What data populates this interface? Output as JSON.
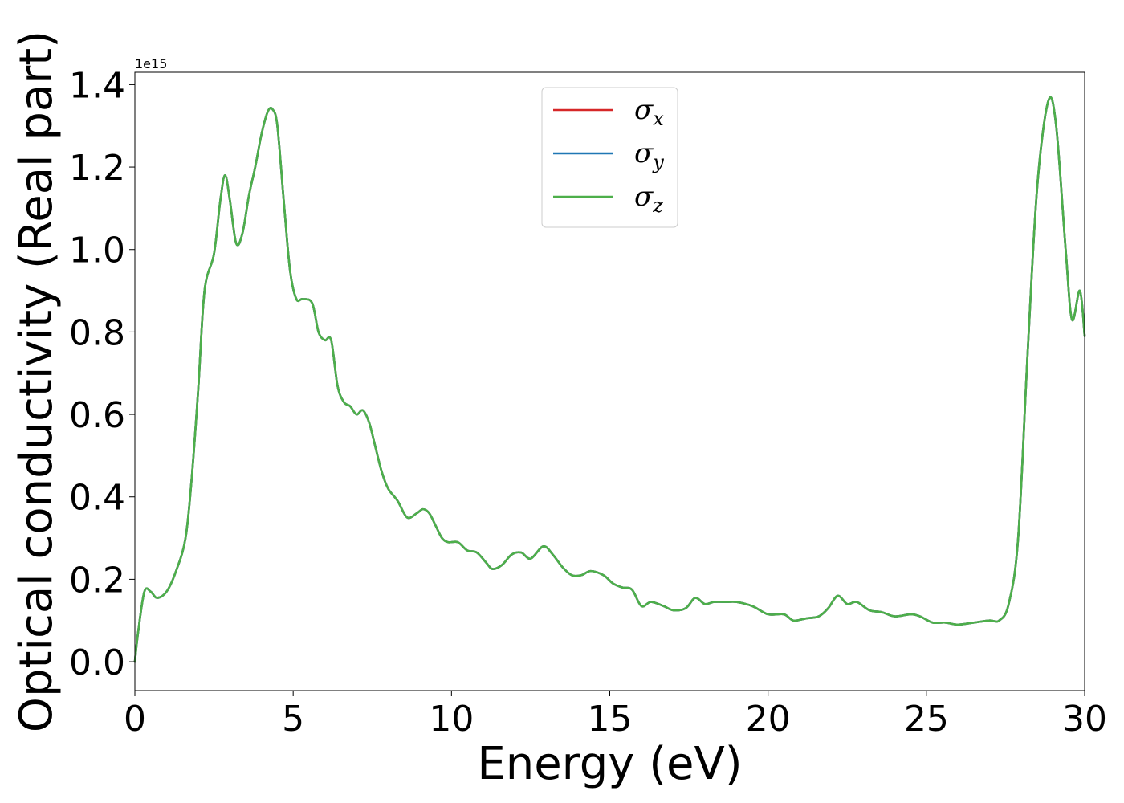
{
  "chart_data": {
    "type": "line",
    "xlabel": "Energy (eV)",
    "ylabel": "Optical conductivity (Real part)",
    "y_offset_label": "1e15",
    "xlim": [
      0,
      30
    ],
    "ylim": [
      -0.07,
      1.43
    ],
    "x_ticks": [
      0,
      5,
      10,
      15,
      20,
      25,
      30
    ],
    "x_tick_labels": [
      "0",
      "5",
      "10",
      "15",
      "20",
      "25",
      "30"
    ],
    "y_ticks": [
      0.0,
      0.2,
      0.4,
      0.6,
      0.8,
      1.0,
      1.2,
      1.4
    ],
    "y_tick_labels": [
      "0.0",
      "0.2",
      "0.4",
      "0.6",
      "0.8",
      "1.0",
      "1.2",
      "1.4"
    ],
    "grid": false,
    "legend_position": "upper center",
    "series": [
      {
        "name": "σx",
        "symbol": "σ",
        "subscript": "x",
        "color": "#d62728",
        "x": [
          0.0,
          0.1,
          0.3,
          0.5,
          0.7,
          1.0,
          1.3,
          1.6,
          1.8,
          2.0,
          2.2,
          2.5,
          2.7,
          2.85,
          3.0,
          3.2,
          3.4,
          3.6,
          3.8,
          4.0,
          4.2,
          4.35,
          4.5,
          4.7,
          4.9,
          5.1,
          5.3,
          5.6,
          5.8,
          6.0,
          6.2,
          6.4,
          6.6,
          6.8,
          7.0,
          7.2,
          7.4,
          7.6,
          7.8,
          8.0,
          8.3,
          8.6,
          8.9,
          9.1,
          9.3,
          9.5,
          9.7,
          9.9,
          10.2,
          10.5,
          10.8,
          11.1,
          11.3,
          11.6,
          11.9,
          12.2,
          12.5,
          12.9,
          13.2,
          13.5,
          13.8,
          14.1,
          14.4,
          14.8,
          15.1,
          15.4,
          15.7,
          16.0,
          16.3,
          16.7,
          17.0,
          17.4,
          17.7,
          18.0,
          18.3,
          18.7,
          19.0,
          19.5,
          20.0,
          20.5,
          20.8,
          21.2,
          21.6,
          21.9,
          22.2,
          22.5,
          22.8,
          23.2,
          23.6,
          24.0,
          24.5,
          24.8,
          25.2,
          25.6,
          26.0,
          26.5,
          27.0,
          27.3,
          27.6,
          27.9,
          28.2,
          28.5,
          28.85,
          29.1,
          29.4,
          29.6,
          29.85,
          30.0
        ],
        "y": [
          0.0,
          0.07,
          0.17,
          0.17,
          0.155,
          0.17,
          0.22,
          0.3,
          0.45,
          0.66,
          0.9,
          0.99,
          1.12,
          1.18,
          1.12,
          1.015,
          1.04,
          1.13,
          1.2,
          1.28,
          1.335,
          1.34,
          1.3,
          1.12,
          0.95,
          0.88,
          0.88,
          0.87,
          0.8,
          0.78,
          0.78,
          0.67,
          0.63,
          0.62,
          0.6,
          0.61,
          0.58,
          0.52,
          0.46,
          0.42,
          0.39,
          0.35,
          0.36,
          0.37,
          0.36,
          0.33,
          0.3,
          0.29,
          0.29,
          0.27,
          0.265,
          0.24,
          0.225,
          0.235,
          0.26,
          0.265,
          0.25,
          0.28,
          0.26,
          0.23,
          0.21,
          0.21,
          0.22,
          0.21,
          0.19,
          0.18,
          0.175,
          0.135,
          0.145,
          0.135,
          0.125,
          0.13,
          0.155,
          0.14,
          0.145,
          0.145,
          0.145,
          0.135,
          0.115,
          0.115,
          0.1,
          0.105,
          0.11,
          0.13,
          0.16,
          0.14,
          0.145,
          0.125,
          0.12,
          0.11,
          0.115,
          0.11,
          0.095,
          0.095,
          0.09,
          0.095,
          0.1,
          0.1,
          0.14,
          0.3,
          0.75,
          1.15,
          1.36,
          1.3,
          1.0,
          0.83,
          0.9,
          0.79
        ]
      },
      {
        "name": "σy",
        "symbol": "σ",
        "subscript": "y",
        "color": "#1f77b4",
        "x": [
          0.0,
          0.1,
          0.3,
          0.5,
          0.7,
          1.0,
          1.3,
          1.6,
          1.8,
          2.0,
          2.2,
          2.5,
          2.7,
          2.85,
          3.0,
          3.2,
          3.4,
          3.6,
          3.8,
          4.0,
          4.2,
          4.35,
          4.5,
          4.7,
          4.9,
          5.1,
          5.3,
          5.6,
          5.8,
          6.0,
          6.2,
          6.4,
          6.6,
          6.8,
          7.0,
          7.2,
          7.4,
          7.6,
          7.8,
          8.0,
          8.3,
          8.6,
          8.9,
          9.1,
          9.3,
          9.5,
          9.7,
          9.9,
          10.2,
          10.5,
          10.8,
          11.1,
          11.3,
          11.6,
          11.9,
          12.2,
          12.5,
          12.9,
          13.2,
          13.5,
          13.8,
          14.1,
          14.4,
          14.8,
          15.1,
          15.4,
          15.7,
          16.0,
          16.3,
          16.7,
          17.0,
          17.4,
          17.7,
          18.0,
          18.3,
          18.7,
          19.0,
          19.5,
          20.0,
          20.5,
          20.8,
          21.2,
          21.6,
          21.9,
          22.2,
          22.5,
          22.8,
          23.2,
          23.6,
          24.0,
          24.5,
          24.8,
          25.2,
          25.6,
          26.0,
          26.5,
          27.0,
          27.3,
          27.6,
          27.9,
          28.2,
          28.5,
          28.85,
          29.1,
          29.4,
          29.6,
          29.85,
          30.0
        ],
        "y": [
          0.0,
          0.07,
          0.17,
          0.17,
          0.155,
          0.17,
          0.22,
          0.3,
          0.45,
          0.66,
          0.9,
          0.99,
          1.12,
          1.18,
          1.12,
          1.015,
          1.04,
          1.13,
          1.2,
          1.28,
          1.335,
          1.34,
          1.3,
          1.12,
          0.95,
          0.88,
          0.88,
          0.87,
          0.8,
          0.78,
          0.78,
          0.67,
          0.63,
          0.62,
          0.6,
          0.61,
          0.58,
          0.52,
          0.46,
          0.42,
          0.39,
          0.35,
          0.36,
          0.37,
          0.36,
          0.33,
          0.3,
          0.29,
          0.29,
          0.27,
          0.265,
          0.24,
          0.225,
          0.235,
          0.26,
          0.265,
          0.25,
          0.28,
          0.26,
          0.23,
          0.21,
          0.21,
          0.22,
          0.21,
          0.19,
          0.18,
          0.175,
          0.135,
          0.145,
          0.135,
          0.125,
          0.13,
          0.155,
          0.14,
          0.145,
          0.145,
          0.145,
          0.135,
          0.115,
          0.115,
          0.1,
          0.105,
          0.11,
          0.13,
          0.16,
          0.14,
          0.145,
          0.125,
          0.12,
          0.11,
          0.115,
          0.11,
          0.095,
          0.095,
          0.09,
          0.095,
          0.1,
          0.1,
          0.14,
          0.3,
          0.75,
          1.15,
          1.36,
          1.3,
          1.0,
          0.83,
          0.9,
          0.79
        ]
      },
      {
        "name": "σz",
        "symbol": "σ",
        "subscript": "z",
        "color": "#4daf4a",
        "x": [
          0.0,
          0.1,
          0.3,
          0.5,
          0.7,
          1.0,
          1.3,
          1.6,
          1.8,
          2.0,
          2.2,
          2.5,
          2.7,
          2.85,
          3.0,
          3.2,
          3.4,
          3.6,
          3.8,
          4.0,
          4.2,
          4.35,
          4.5,
          4.7,
          4.9,
          5.1,
          5.3,
          5.6,
          5.8,
          6.0,
          6.2,
          6.4,
          6.6,
          6.8,
          7.0,
          7.2,
          7.4,
          7.6,
          7.8,
          8.0,
          8.3,
          8.6,
          8.9,
          9.1,
          9.3,
          9.5,
          9.7,
          9.9,
          10.2,
          10.5,
          10.8,
          11.1,
          11.3,
          11.6,
          11.9,
          12.2,
          12.5,
          12.9,
          13.2,
          13.5,
          13.8,
          14.1,
          14.4,
          14.8,
          15.1,
          15.4,
          15.7,
          16.0,
          16.3,
          16.7,
          17.0,
          17.4,
          17.7,
          18.0,
          18.3,
          18.7,
          19.0,
          19.5,
          20.0,
          20.5,
          20.8,
          21.2,
          21.6,
          21.9,
          22.2,
          22.5,
          22.8,
          23.2,
          23.6,
          24.0,
          24.5,
          24.8,
          25.2,
          25.6,
          26.0,
          26.5,
          27.0,
          27.3,
          27.6,
          27.9,
          28.2,
          28.5,
          28.85,
          29.1,
          29.4,
          29.6,
          29.85,
          30.0
        ],
        "y": [
          0.0,
          0.07,
          0.17,
          0.17,
          0.155,
          0.17,
          0.22,
          0.3,
          0.45,
          0.66,
          0.9,
          0.99,
          1.12,
          1.18,
          1.12,
          1.015,
          1.04,
          1.13,
          1.2,
          1.28,
          1.335,
          1.34,
          1.3,
          1.12,
          0.95,
          0.88,
          0.88,
          0.87,
          0.8,
          0.78,
          0.78,
          0.67,
          0.63,
          0.62,
          0.6,
          0.61,
          0.58,
          0.52,
          0.46,
          0.42,
          0.39,
          0.35,
          0.36,
          0.37,
          0.36,
          0.33,
          0.3,
          0.29,
          0.29,
          0.27,
          0.265,
          0.24,
          0.225,
          0.235,
          0.26,
          0.265,
          0.25,
          0.28,
          0.26,
          0.23,
          0.21,
          0.21,
          0.22,
          0.21,
          0.19,
          0.18,
          0.175,
          0.135,
          0.145,
          0.135,
          0.125,
          0.13,
          0.155,
          0.14,
          0.145,
          0.145,
          0.145,
          0.135,
          0.115,
          0.115,
          0.1,
          0.105,
          0.11,
          0.13,
          0.16,
          0.14,
          0.145,
          0.125,
          0.12,
          0.11,
          0.115,
          0.11,
          0.095,
          0.095,
          0.09,
          0.095,
          0.1,
          0.1,
          0.14,
          0.3,
          0.75,
          1.15,
          1.36,
          1.3,
          1.0,
          0.83,
          0.9,
          0.79
        ]
      }
    ]
  }
}
